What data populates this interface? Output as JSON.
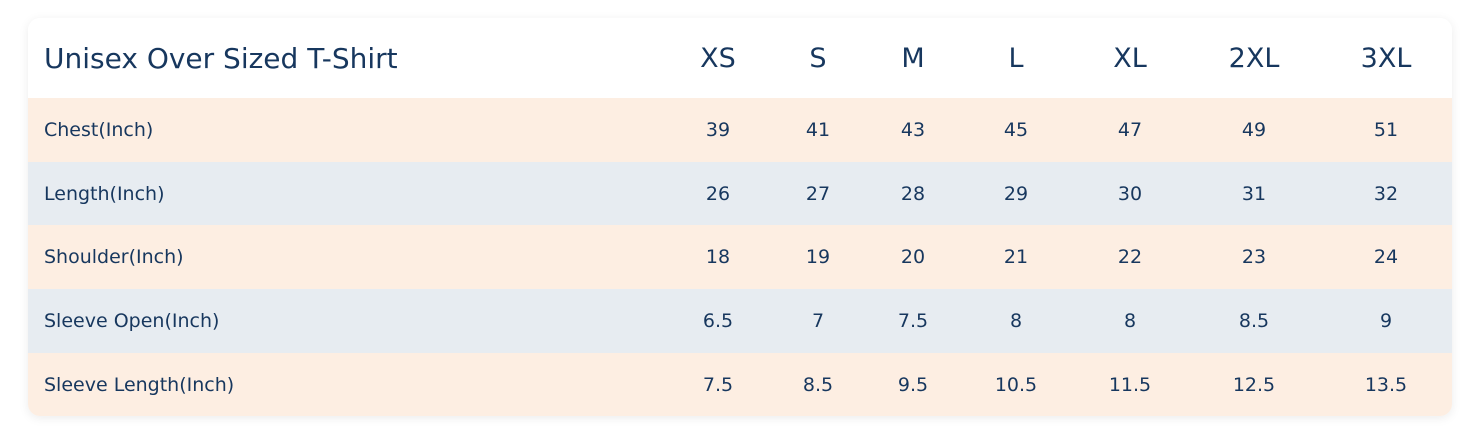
{
  "table": {
    "title": "Unisex Over Sized T-Shirt",
    "columns": [
      "XS",
      "S",
      "M",
      "L",
      "XL",
      "2XL",
      "3XL"
    ],
    "rows": [
      {
        "label": "Chest(Inch)",
        "values": [
          39,
          41,
          43,
          45,
          47,
          49,
          51
        ]
      },
      {
        "label": "Length(Inch)",
        "values": [
          26,
          27,
          28,
          29,
          30,
          31,
          32
        ]
      },
      {
        "label": "Shoulder(Inch)",
        "values": [
          18,
          19,
          20,
          21,
          22,
          23,
          24
        ]
      },
      {
        "label": "Sleeve Open(Inch)",
        "values": [
          6.5,
          7,
          7.5,
          8,
          8,
          8.5,
          9
        ]
      },
      {
        "label": "Sleeve Length(Inch)",
        "values": [
          7.5,
          8.5,
          9.5,
          10.5,
          11.5,
          12.5,
          13.5
        ]
      }
    ]
  }
}
